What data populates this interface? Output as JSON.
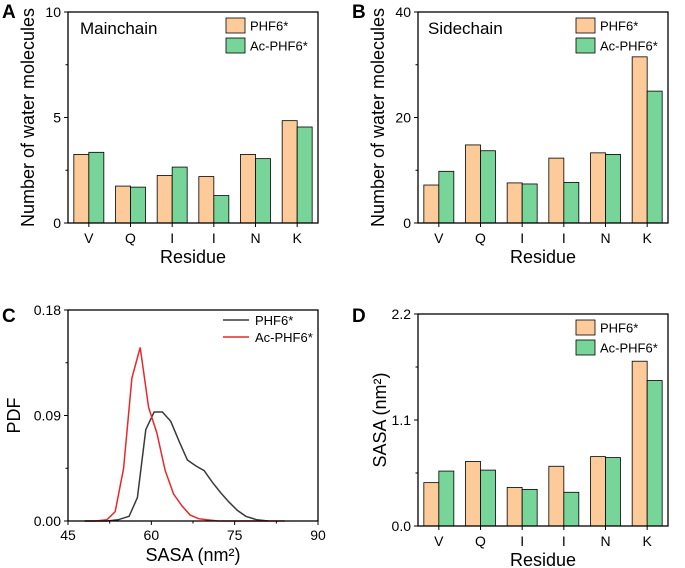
{
  "colors": {
    "phf6": "#FDCB9A",
    "ac_phf6": "#77D59A",
    "line_phf6": "#3a3a3a",
    "line_ac_phf6": "#E8282A"
  },
  "chart_data": [
    {
      "panel": "A",
      "type": "bar",
      "title": "Mainchain",
      "xlabel": "Residue",
      "ylabel": "Number of water molecules",
      "categories": [
        "V",
        "Q",
        "I",
        "I",
        "N",
        "K"
      ],
      "ylim": [
        0,
        10
      ],
      "yticks": [
        0,
        5,
        10
      ],
      "series": [
        {
          "name": "PHF6*",
          "color_key": "phf6",
          "values": [
            3.25,
            1.75,
            2.25,
            2.2,
            3.25,
            4.85
          ]
        },
        {
          "name": "Ac-PHF6*",
          "color_key": "ac_phf6",
          "values": [
            3.35,
            1.7,
            2.65,
            1.3,
            3.05,
            4.55
          ]
        }
      ],
      "legend": "top-right"
    },
    {
      "panel": "B",
      "type": "bar",
      "title": "Sidechain",
      "xlabel": "Residue",
      "ylabel": "Number of water molecules",
      "categories": [
        "V",
        "Q",
        "I",
        "I",
        "N",
        "K"
      ],
      "ylim": [
        0,
        40
      ],
      "yticks": [
        0,
        20,
        40
      ],
      "series": [
        {
          "name": "PHF6*",
          "color_key": "phf6",
          "values": [
            7.2,
            14.8,
            7.6,
            12.3,
            13.3,
            31.5
          ]
        },
        {
          "name": "Ac-PHF6*",
          "color_key": "ac_phf6",
          "values": [
            9.8,
            13.7,
            7.4,
            7.7,
            13.0,
            25.0
          ]
        }
      ],
      "legend": "top-right"
    },
    {
      "panel": "C",
      "type": "line",
      "title": "",
      "xlabel": "SASA (nm²)",
      "ylabel": "PDF",
      "xlim": [
        45,
        90
      ],
      "ylim": [
        0,
        0.18
      ],
      "xticks": [
        45,
        60,
        75,
        90
      ],
      "yticks": [
        "0.00",
        "0.09",
        "0.18"
      ],
      "series": [
        {
          "name": "PHF6*",
          "color_key": "line_phf6",
          "x": [
            48,
            52,
            54,
            56,
            57.5,
            59,
            60.5,
            62,
            63.5,
            65,
            66.5,
            68,
            69.5,
            71,
            72.5,
            74,
            75.5,
            77,
            79,
            81
          ],
          "y": [
            0,
            0,
            0.001,
            0.004,
            0.02,
            0.078,
            0.093,
            0.093,
            0.085,
            0.068,
            0.052,
            0.047,
            0.043,
            0.033,
            0.024,
            0.016,
            0.009,
            0.004,
            0.001,
            0
          ]
        },
        {
          "name": "Ac-PHF6*",
          "color_key": "line_ac_phf6",
          "x": [
            48,
            50,
            52,
            53.5,
            55,
            56.5,
            58,
            59.5,
            61,
            62.5,
            64,
            65.5,
            67,
            68.5,
            70,
            72,
            74,
            76,
            78,
            80,
            82,
            84
          ],
          "y": [
            0,
            0,
            0.001,
            0.008,
            0.045,
            0.122,
            0.148,
            0.097,
            0.075,
            0.043,
            0.023,
            0.013,
            0.005,
            0.002,
            0.001,
            0,
            0,
            0,
            0,
            0,
            0,
            0
          ]
        }
      ],
      "legend": "top-right"
    },
    {
      "panel": "D",
      "type": "bar",
      "title": "",
      "xlabel": "Residue",
      "ylabel": "SASA (nm²)",
      "categories": [
        "V",
        "Q",
        "I",
        "I",
        "N",
        "K"
      ],
      "ylim": [
        0,
        2.2
      ],
      "yticks": [
        "0.0",
        "1.1",
        "2.2"
      ],
      "series": [
        {
          "name": "PHF6*",
          "color_key": "phf6",
          "values": [
            0.45,
            0.67,
            0.4,
            0.62,
            0.72,
            1.71
          ]
        },
        {
          "name": "Ac-PHF6*",
          "color_key": "ac_phf6",
          "values": [
            0.57,
            0.58,
            0.38,
            0.35,
            0.71,
            1.51
          ]
        }
      ],
      "legend": "top-right"
    }
  ]
}
